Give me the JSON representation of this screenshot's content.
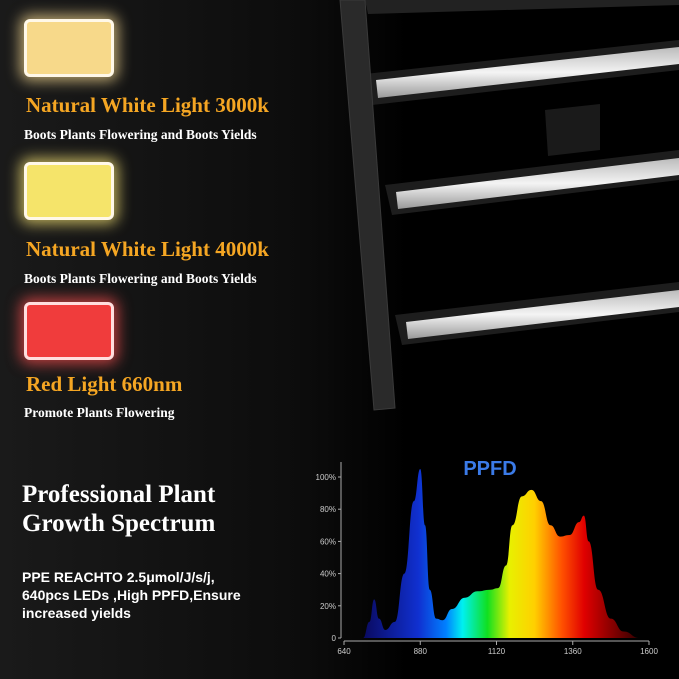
{
  "features": [
    {
      "title": "Natural White Light 3000k",
      "subtitle": "Boots Plants Flowering and Boots Yields",
      "color": "#f7d98a"
    },
    {
      "title": "Natural White Light 4000k",
      "subtitle": "Boots Plants Flowering and Boots Yields",
      "color": "#f5e46a"
    },
    {
      "title": "Red Light 660nm",
      "subtitle": "Promote Plants Flowering",
      "color": "#f03c3c"
    }
  ],
  "heading": {
    "line1": "Professional Plant",
    "line2": "Growth Spectrum"
  },
  "description": {
    "line1": "PPE REACHTO 2.5μmol/J/s/j,",
    "line2": "640pcs LEDs ,High PPFD,Ensure",
    "line3": "increased yields"
  },
  "chart_data": {
    "type": "area",
    "title": "PPFD",
    "x_ticks": [
      "640",
      "880",
      "1120",
      "1360",
      "1600"
    ],
    "y_ticks": [
      "0",
      "20%",
      "40%",
      "60%",
      "80%",
      "100%"
    ],
    "xlim": [
      640,
      1600
    ],
    "ylim": [
      0,
      100
    ],
    "grid": false,
    "points": [
      [
        700,
        0
      ],
      [
        720,
        10
      ],
      [
        735,
        24
      ],
      [
        750,
        12
      ],
      [
        770,
        5
      ],
      [
        800,
        10
      ],
      [
        830,
        40
      ],
      [
        860,
        85
      ],
      [
        880,
        105
      ],
      [
        895,
        70
      ],
      [
        910,
        30
      ],
      [
        930,
        12
      ],
      [
        950,
        11
      ],
      [
        980,
        18
      ],
      [
        1020,
        25
      ],
      [
        1060,
        29
      ],
      [
        1100,
        30
      ],
      [
        1125,
        31
      ],
      [
        1150,
        45
      ],
      [
        1170,
        70
      ],
      [
        1200,
        88
      ],
      [
        1230,
        92
      ],
      [
        1260,
        85
      ],
      [
        1290,
        70
      ],
      [
        1320,
        63
      ],
      [
        1350,
        64
      ],
      [
        1380,
        72
      ],
      [
        1395,
        76
      ],
      [
        1410,
        60
      ],
      [
        1440,
        30
      ],
      [
        1480,
        12
      ],
      [
        1520,
        4
      ],
      [
        1570,
        0
      ]
    ],
    "fill": "spectrum gradient blue-cyan-green-yellow-red"
  }
}
